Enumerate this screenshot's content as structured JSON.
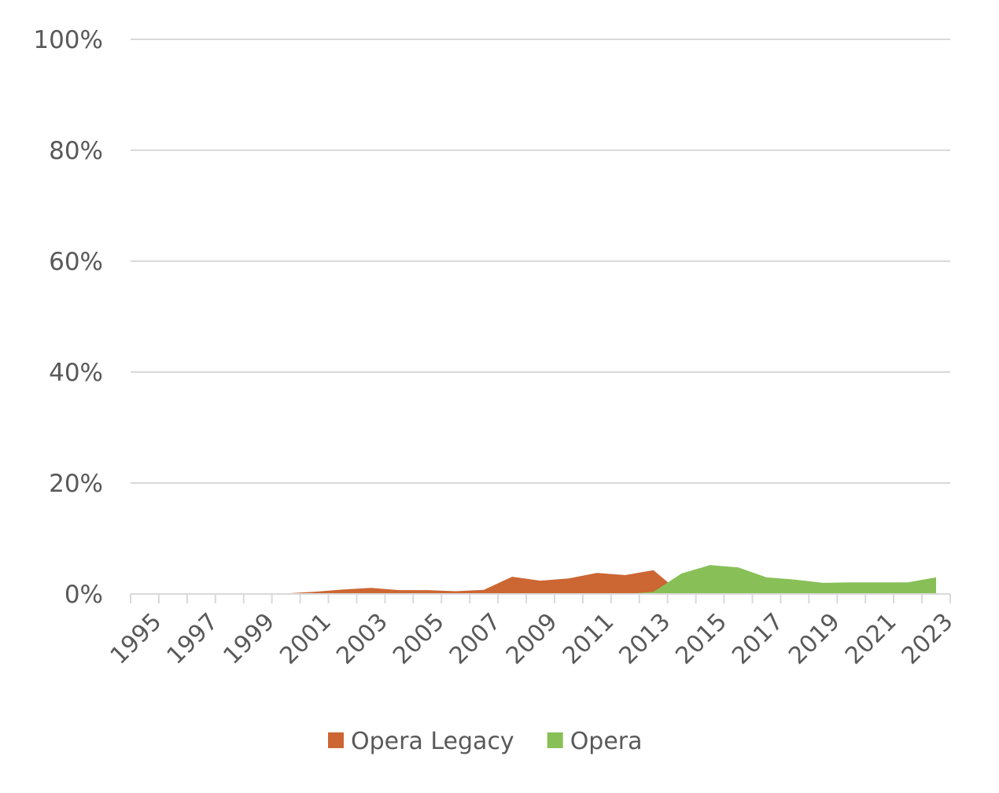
{
  "chart_data": {
    "type": "area",
    "title": "",
    "xlabel": "",
    "ylabel": "",
    "ylim": [
      0,
      100
    ],
    "yticks": [
      "0%",
      "20%",
      "40%",
      "60%",
      "80%",
      "100%"
    ],
    "ytick_values": [
      0,
      20,
      40,
      60,
      80,
      100
    ],
    "grid": true,
    "legend_position": "bottom",
    "categories": [
      "1995",
      "1996",
      "1997",
      "1998",
      "1999",
      "2000",
      "2001",
      "2002",
      "2003",
      "2004",
      "2005",
      "2006",
      "2007",
      "2008",
      "2009",
      "2010",
      "2011",
      "2012",
      "2013",
      "2014",
      "2015",
      "2016",
      "2017",
      "2018",
      "2019",
      "2020",
      "2021",
      "2022",
      "2023"
    ],
    "xtick_labels": [
      "1995",
      "1997",
      "1999",
      "2001",
      "2003",
      "2005",
      "2007",
      "2009",
      "2011",
      "2013",
      "2015",
      "2017",
      "2019",
      "2021",
      "2023"
    ],
    "series": [
      {
        "name": "Opera Legacy",
        "color": "#CC6633",
        "values": [
          0,
          0,
          0,
          0,
          0,
          0.1,
          0.4,
          0.8,
          1.1,
          0.7,
          0.7,
          0.5,
          0.75,
          3.1,
          2.4,
          2.8,
          3.8,
          3.4,
          4.3,
          0,
          0,
          0,
          0,
          0,
          0,
          0,
          0,
          0,
          0
        ]
      },
      {
        "name": "Opera",
        "color": "#88C057",
        "values": [
          0,
          0,
          0,
          0,
          0,
          0,
          0,
          0,
          0,
          0,
          0,
          0,
          0,
          0,
          0,
          0,
          0,
          0,
          0.4,
          3.7,
          5.2,
          4.8,
          3.0,
          2.6,
          2.0,
          2.1,
          2.1,
          2.1,
          3.0
        ]
      }
    ]
  }
}
